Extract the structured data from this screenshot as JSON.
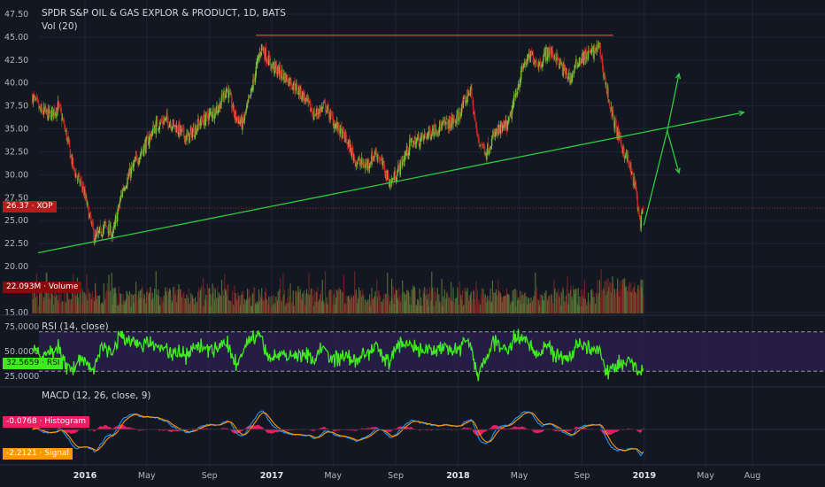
{
  "title": "SPDR S&P OIL & GAS EXPLOR & PRODUCT, 1D, BATS",
  "volume_label": "Vol (20)",
  "rsi_label": "RSI (14, close)",
  "macd_label": "MACD (12, 26, close, 9)",
  "colors": {
    "background": "#131722",
    "up": "#26a69a",
    "up_candle": "#7cbf3a",
    "down": "#c62828",
    "trendline": "#2ecc40",
    "resistance": "#e53935",
    "rsi_line": "#3fea1f",
    "rsi_band": "#2a1f4d",
    "macd_line": "#2196f3",
    "signal_line": "#ff9800",
    "histogram": "#e91e63"
  },
  "badges": {
    "price_value": "26.37",
    "price_sym": "XOP",
    "volume_value": "22.093M",
    "volume_name": "Volume",
    "rsi_value": "32.5659",
    "rsi_name": "RSI",
    "hist_value": "-0.0768",
    "hist_name": "Histogram",
    "signal_value": "-2.2121",
    "signal_name": "Signal"
  },
  "chart_data": [
    {
      "type": "candlestick",
      "panel": "price",
      "title": "SPDR S&P OIL & GAS EXPLOR & PRODUCT, 1D, BATS",
      "ylim": [
        15.0,
        47.5
      ],
      "yticks": [
        "47.50",
        "45.00",
        "42.50",
        "40.00",
        "37.50",
        "35.00",
        "32.50",
        "30.00",
        "27.50",
        "25.00",
        "22.50",
        "20.00",
        "15.00"
      ],
      "x_ticks": [
        "2016",
        "May",
        "Sep",
        "2017",
        "May",
        "Sep",
        "2018",
        "May",
        "Sep",
        "2019",
        "May",
        "Aug"
      ],
      "x_range": [
        "2015-09",
        "2019-09"
      ],
      "close_path": [
        [
          "2015-09-20",
          38.5
        ],
        [
          "2015-10-05",
          37.0
        ],
        [
          "2015-10-25",
          36.5
        ],
        [
          "2015-11-10",
          37.5
        ],
        [
          "2015-11-25",
          34.5
        ],
        [
          "2015-12-10",
          30.5
        ],
        [
          "2015-12-28",
          28.5
        ],
        [
          "2016-01-10",
          25.5
        ],
        [
          "2016-01-20",
          23.0
        ],
        [
          "2016-02-10",
          24.5
        ],
        [
          "2016-02-25",
          23.5
        ],
        [
          "2016-03-15",
          28.5
        ],
        [
          "2016-04-10",
          31.5
        ],
        [
          "2016-05-01",
          33.5
        ],
        [
          "2016-05-20",
          35.5
        ],
        [
          "2016-06-10",
          36.0
        ],
        [
          "2016-07-01",
          35.0
        ],
        [
          "2016-07-20",
          34.0
        ],
        [
          "2016-08-10",
          35.5
        ],
        [
          "2016-09-01",
          36.5
        ],
        [
          "2016-09-20",
          37.5
        ],
        [
          "2016-10-05",
          39.5
        ],
        [
          "2016-10-20",
          36.5
        ],
        [
          "2016-11-05",
          35.5
        ],
        [
          "2016-11-20",
          38.5
        ],
        [
          "2016-12-05",
          42.5
        ],
        [
          "2016-12-12",
          44.0
        ],
        [
          "2016-12-30",
          42.0
        ],
        [
          "2017-01-20",
          41.0
        ],
        [
          "2017-02-10",
          40.0
        ],
        [
          "2017-03-05",
          38.5
        ],
        [
          "2017-03-25",
          36.5
        ],
        [
          "2017-04-15",
          37.5
        ],
        [
          "2017-05-05",
          35.5
        ],
        [
          "2017-05-25",
          34.0
        ],
        [
          "2017-06-15",
          31.5
        ],
        [
          "2017-07-05",
          31.0
        ],
        [
          "2017-07-25",
          32.5
        ],
        [
          "2017-08-10",
          30.5
        ],
        [
          "2017-08-22",
          29.0
        ],
        [
          "2017-09-10",
          31.0
        ],
        [
          "2017-10-01",
          33.5
        ],
        [
          "2017-10-25",
          34.0
        ],
        [
          "2017-11-15",
          35.0
        ],
        [
          "2017-12-10",
          35.5
        ],
        [
          "2017-12-30",
          36.0
        ],
        [
          "2018-01-15",
          38.0
        ],
        [
          "2018-01-25",
          39.5
        ],
        [
          "2018-02-08",
          34.0
        ],
        [
          "2018-02-25",
          32.5
        ],
        [
          "2018-03-15",
          34.5
        ],
        [
          "2018-04-10",
          35.5
        ],
        [
          "2018-04-25",
          39.0
        ],
        [
          "2018-05-10",
          42.0
        ],
        [
          "2018-05-25",
          43.0
        ],
        [
          "2018-06-10",
          42.0
        ],
        [
          "2018-06-25",
          43.5
        ],
        [
          "2018-07-10",
          43.0
        ],
        [
          "2018-07-25",
          41.5
        ],
        [
          "2018-08-10",
          40.5
        ],
        [
          "2018-08-25",
          42.5
        ],
        [
          "2018-09-10",
          43.0
        ],
        [
          "2018-09-25",
          43.5
        ],
        [
          "2018-10-05",
          44.0
        ],
        [
          "2018-10-15",
          40.5
        ],
        [
          "2018-10-30",
          36.5
        ],
        [
          "2018-11-15",
          33.5
        ],
        [
          "2018-11-30",
          31.5
        ],
        [
          "2018-12-15",
          28.5
        ],
        [
          "2018-12-24",
          24.5
        ],
        [
          "2018-12-31",
          26.4
        ]
      ],
      "last_close": 26.37,
      "annotations": [
        {
          "type": "trendline",
          "from": [
            "2015-10-01",
            21.5
          ],
          "to": [
            "2019-07-15",
            36.8
          ]
        },
        {
          "type": "horizontal_resistance",
          "from": [
            "2016-12-01",
            45.2
          ],
          "to": [
            "2018-11-01",
            45.2
          ]
        },
        {
          "type": "projection_arrow",
          "points": [
            [
              "2018-12-31",
              24.5
            ],
            [
              "2019-02-15",
              34.8
            ],
            [
              "2019-03-10",
              30.2
            ]
          ]
        },
        {
          "type": "projection_arrow",
          "points": [
            [
              "2019-02-15",
              34.8
            ],
            [
              "2019-03-10",
              41.0
            ]
          ]
        },
        {
          "type": "horizontal_level",
          "price": 26.37
        }
      ]
    },
    {
      "type": "bar",
      "panel": "volume",
      "name": "Vol (20)",
      "last_value": "22.093M"
    },
    {
      "type": "line",
      "panel": "rsi",
      "name": "RSI (14, close)",
      "ylim": [
        15,
        85
      ],
      "yticks": [
        "75.0000",
        "50.0000",
        "25.0000"
      ],
      "bands": [
        30,
        70
      ],
      "last_value": 32.5659
    },
    {
      "type": "line",
      "panel": "macd",
      "name": "MACD (12, 26, close, 9)",
      "ylim": [
        -3.0,
        3.0
      ],
      "series": [
        {
          "name": "Histogram",
          "last_value": -0.0768
        },
        {
          "name": "Signal",
          "last_value": -2.2121
        }
      ]
    }
  ]
}
